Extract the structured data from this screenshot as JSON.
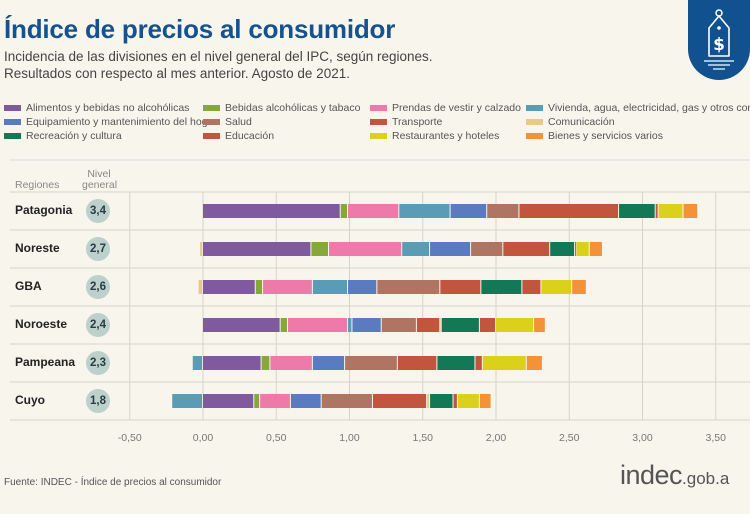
{
  "header": {
    "title": "Índice de precios al consumidor",
    "subtitle_line1": "Incidencia de las divisiones en el nivel general del IPC, según regiones.",
    "subtitle_line2": "Resultados con respecto al mes anterior. Agosto de 2021.",
    "badge_icon": "price-tag-dollar-icon",
    "badge_color": "#11518f"
  },
  "table_headers": {
    "regions": "Regiones",
    "level_line1": "Nivel",
    "level_line2": "general"
  },
  "footer": {
    "source": "Fuente: INDEC - Índice de precios al consumidor",
    "logo_main": "indec",
    "logo_suffix": ".gob.a"
  },
  "chart_data": {
    "type": "bar",
    "orientation": "horizontal",
    "stacked": true,
    "title": "Índice de precios al consumidor",
    "subtitle": "Incidencia de las divisiones en el nivel general del IPC, según regiones. Resultados con respecto al mes anterior. Agosto de 2021.",
    "xlabel": "",
    "ylabel": "Regiones",
    "xlim": [
      -0.5,
      3.5
    ],
    "xticks": [
      -0.5,
      0,
      0.5,
      1,
      1.5,
      2,
      2.5,
      3,
      3.5
    ],
    "xtick_labels": [
      "-0,50",
      "0,00",
      "0,50",
      "1,00",
      "1,50",
      "2,00",
      "2,50",
      "3,00",
      "3,50"
    ],
    "grid": true,
    "legend_position": "top",
    "categories": [
      "Patagonia",
      "Noreste",
      "GBA",
      "Noroeste",
      "Pampeana",
      "Cuyo"
    ],
    "nivel_general": [
      "3,4",
      "2,7",
      "2,6",
      "2,4",
      "2,3",
      "1,8"
    ],
    "series": [
      {
        "name": "Alimentos y bebidas no alcohólicas",
        "color": "#7f5a9e",
        "values": [
          0.94,
          0.74,
          0.36,
          0.53,
          0.4,
          0.35
        ]
      },
      {
        "name": "Bebidas alcohólicas y tabaco",
        "color": "#86a83a",
        "values": [
          0.05,
          0.12,
          0.05,
          0.05,
          0.06,
          0.04
        ]
      },
      {
        "name": "Prendas de vestir y calzado",
        "color": "#ee7aa9",
        "values": [
          0.35,
          0.5,
          0.34,
          0.41,
          0.29,
          0.21
        ]
      },
      {
        "name": "Vivienda, agua, electricidad, gas y otros combustibles",
        "color": "#5a9bb5",
        "values": [
          0.35,
          0.19,
          0.24,
          0.03,
          -0.07,
          -0.21
        ]
      },
      {
        "name": "Equipamiento y mantenimiento del hogar",
        "color": "#5a7bc0",
        "values": [
          0.25,
          0.28,
          0.2,
          0.2,
          0.22,
          0.21
        ]
      },
      {
        "name": "Salud",
        "color": "#b07462",
        "values": [
          0.22,
          0.22,
          0.43,
          0.24,
          0.36,
          0.35
        ]
      },
      {
        "name": "Transporte",
        "color": "#c1553e",
        "values": [
          0.68,
          0.32,
          0.28,
          0.16,
          0.27,
          0.37
        ]
      },
      {
        "name": "Comunicación",
        "color": "#e8c98a",
        "values": [
          0.0,
          -0.02,
          -0.03,
          0.01,
          0.0,
          0.02
        ]
      },
      {
        "name": "Recreación y cultura",
        "color": "#137856",
        "values": [
          0.25,
          0.17,
          0.28,
          0.26,
          0.26,
          0.16
        ]
      },
      {
        "name": "Educación",
        "color": "#c1553e",
        "values": [
          0.02,
          0.01,
          0.13,
          0.11,
          0.05,
          0.03
        ]
      },
      {
        "name": "Restaurantes y hoteles",
        "color": "#dcd11a",
        "values": [
          0.17,
          0.09,
          0.21,
          0.26,
          0.3,
          0.15
        ]
      },
      {
        "name": "Bienes y servicios varios",
        "color": "#f39237",
        "values": [
          0.1,
          0.09,
          0.1,
          0.08,
          0.11,
          0.08
        ]
      }
    ],
    "legend_order": [
      [
        "Alimentos y bebidas no alcohólicas",
        "Bebidas alcohólicas y tabaco",
        "Prendas de vestir y calzado",
        "Vivienda, agua, electricidad, gas y otros combustibles"
      ],
      [
        "Equipamiento y mantenimiento del hogar",
        "Salud",
        "Transporte",
        "Comunicación"
      ],
      [
        "Recreación y cultura",
        "Educación",
        "Restaurantes y hoteles",
        "Bienes y servicios varios"
      ]
    ]
  }
}
